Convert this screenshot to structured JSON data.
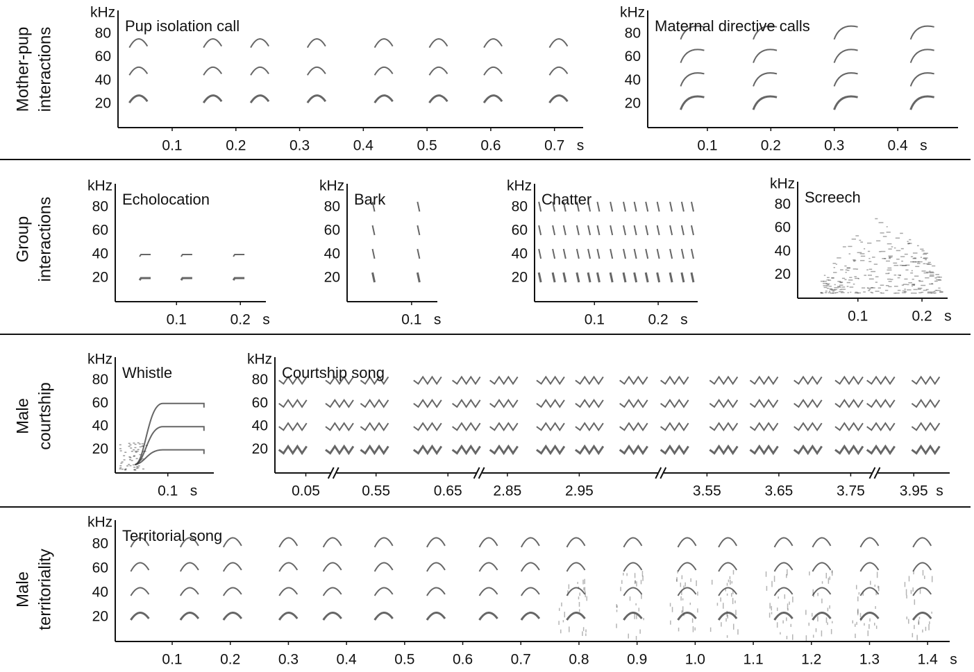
{
  "rows": [
    {
      "label_lines": [
        "Mother-pup",
        "interactions"
      ],
      "panels": [
        {
          "title": "Pup isolation call",
          "y_unit": "kHz",
          "x_unit": "s",
          "ylim": [
            0,
            100
          ],
          "yticks": [
            20,
            40,
            60,
            80
          ],
          "xlim": [
            0.015,
            0.745
          ],
          "xticks": [
            0.1,
            0.2,
            0.3,
            0.4,
            0.5,
            0.6,
            0.7
          ]
        },
        {
          "title": "Maternal directive calls",
          "y_unit": "kHz",
          "x_unit": "s",
          "ylim": [
            0,
            100
          ],
          "yticks": [
            20,
            40,
            60,
            80
          ],
          "xlim": [
            0.006,
            0.495
          ],
          "xticks": [
            0.1,
            0.2,
            0.3,
            0.4
          ]
        }
      ]
    },
    {
      "label_lines": [
        "Group",
        "interactions"
      ],
      "panels": [
        {
          "title": "Echolocation",
          "y_unit": "kHz",
          "x_unit": "s",
          "ylim": [
            0,
            100
          ],
          "yticks": [
            20,
            40,
            60,
            80
          ],
          "xlim": [
            0.004,
            0.24
          ],
          "xticks": [
            0.1,
            0.2
          ]
        },
        {
          "title": "Bark",
          "y_unit": "kHz",
          "x_unit": "s",
          "ylim": [
            0,
            100
          ],
          "yticks": [
            20,
            40,
            60,
            80
          ],
          "xlim": [
            0,
            0.14
          ],
          "xticks": [
            0.1
          ]
        },
        {
          "title": "Chatter",
          "y_unit": "kHz",
          "x_unit": "s",
          "ylim": [
            0,
            100
          ],
          "yticks": [
            20,
            40,
            60,
            80
          ],
          "xlim": [
            0.006,
            0.262
          ],
          "xticks": [
            0.1,
            0.2
          ]
        },
        {
          "title": "Screech",
          "y_unit": "kHz",
          "x_unit": "s",
          "ylim": [
            0,
            100
          ],
          "yticks": [
            20,
            40,
            60,
            80
          ],
          "xlim": [
            0.006,
            0.24
          ],
          "xticks": [
            0.1,
            0.2
          ]
        }
      ]
    },
    {
      "label_lines": [
        "Male",
        "courtship"
      ],
      "panels": [
        {
          "title": "Whistle",
          "y_unit": "kHz",
          "x_unit": "s",
          "ylim": [
            0,
            100
          ],
          "yticks": [
            20,
            40,
            60,
            80
          ],
          "xlim": [
            0.02,
            0.17
          ],
          "xticks": [
            0.1
          ]
        },
        {
          "title": "Courtship song",
          "y_unit": "kHz",
          "x_unit": "s",
          "ylim": [
            0,
            100
          ],
          "yticks": [
            20,
            40,
            60,
            80
          ],
          "segments": [
            {
              "xlim": [
                0.007,
                0.085
              ],
              "xticks": [
                0.05
              ]
            },
            {
              "xlim": [
                0.495,
                0.69
              ],
              "xticks": [
                0.55,
                0.65
              ]
            },
            {
              "xlim": [
                2.815,
                3.06
              ],
              "xticks": [
                2.85,
                2.95
              ]
            },
            {
              "xlim": [
                3.49,
                3.78
              ],
              "xticks": [
                3.55,
                3.65,
                3.75
              ]
            },
            {
              "xlim": [
                3.9,
                4.0
              ],
              "xticks": [
                3.95
              ]
            }
          ]
        }
      ]
    },
    {
      "label_lines": [
        "Male",
        "territoriality"
      ],
      "panels": [
        {
          "title": "Territorial song",
          "y_unit": "kHz",
          "x_unit": "s",
          "ylim": [
            0,
            100
          ],
          "yticks": [
            20,
            40,
            60,
            80
          ],
          "xlim": [
            0.002,
            1.438
          ],
          "xticks": [
            0.1,
            0.2,
            0.3,
            0.4,
            0.5,
            0.6,
            0.7,
            0.8,
            0.9,
            {
              "value": 1.0,
              "label": "1.0"
            },
            1.1,
            1.2,
            1.3,
            1.4
          ]
        }
      ]
    }
  ]
}
